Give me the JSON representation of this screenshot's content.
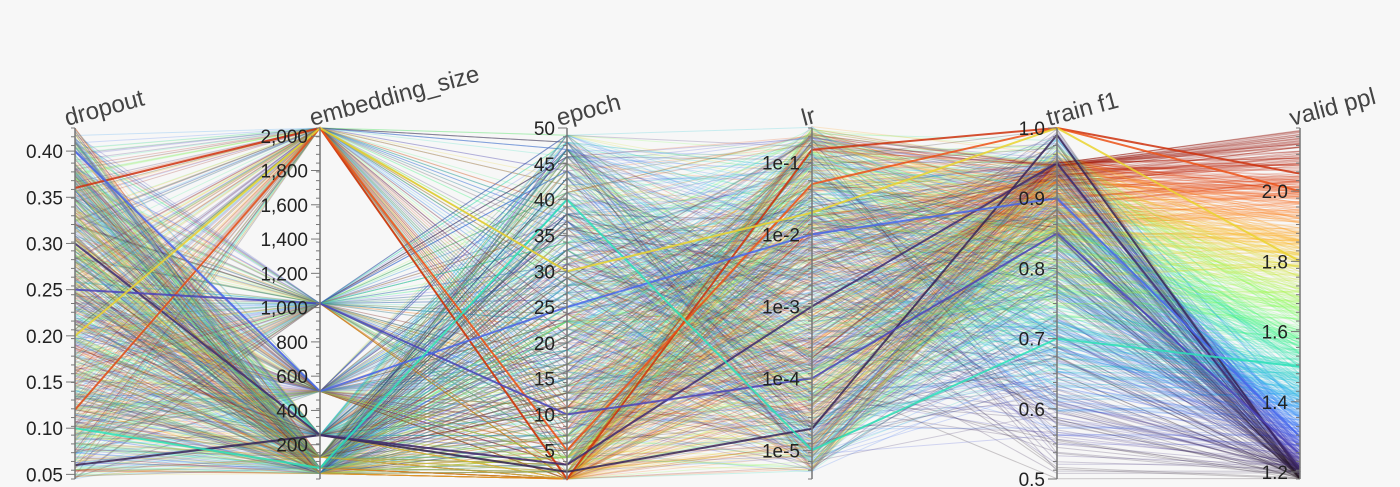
{
  "chart_data": {
    "type": "parallel_coordinates",
    "title": "",
    "axes": [
      {
        "name": "dropout",
        "scale": "linear",
        "range": [
          0.045,
          0.425
        ],
        "ticks": [
          0.05,
          0.1,
          0.15,
          0.2,
          0.25,
          0.3,
          0.35,
          0.4
        ],
        "tick_labels": [
          "0.05",
          "0.10",
          "0.15",
          "0.20",
          "0.25",
          "0.30",
          "0.35",
          "0.40"
        ]
      },
      {
        "name": "embedding_size",
        "scale": "linear",
        "range": [
          0,
          2048
        ],
        "ticks": [
          200,
          400,
          600,
          800,
          1000,
          1200,
          1400,
          1600,
          1800,
          2000
        ],
        "tick_labels": [
          "200",
          "400",
          "600",
          "800",
          "1,000",
          "1,200",
          "1,400",
          "1,600",
          "1,800",
          "2,000"
        ]
      },
      {
        "name": "epoch",
        "scale": "linear",
        "range": [
          1,
          50
        ],
        "ticks": [
          5,
          10,
          15,
          20,
          25,
          30,
          35,
          40,
          45,
          50
        ],
        "tick_labels": [
          "5",
          "10",
          "15",
          "20",
          "25",
          "30",
          "35",
          "40",
          "45",
          "50"
        ]
      },
      {
        "name": "lr",
        "scale": "log",
        "range": [
          4e-06,
          0.3
        ],
        "ticks": [
          1e-05,
          0.0001,
          0.001,
          0.01,
          0.1
        ],
        "tick_labels": [
          "1e-5",
          "1e-4",
          "1e-3",
          "1e-2",
          "1e-1"
        ]
      },
      {
        "name": "train f1",
        "scale": "linear",
        "range": [
          0.5,
          1.0
        ],
        "ticks": [
          0.5,
          0.6,
          0.7,
          0.8,
          0.9,
          1.0
        ],
        "tick_labels": [
          "0.5",
          "0.6",
          "0.7",
          "0.8",
          "0.9",
          "1.0"
        ]
      },
      {
        "name": "valid ppl",
        "scale": "linear",
        "range": [
          1.18,
          2.18
        ],
        "ticks": [
          1.2,
          1.4,
          1.6,
          1.8,
          2.0
        ],
        "tick_labels": [
          "1.2",
          "1.4",
          "1.6",
          "1.8",
          "2.0"
        ]
      }
    ],
    "color_by": "valid ppl",
    "colormap": "turbo",
    "colors": {
      "background": "#f7f7f7",
      "axis": "#777777",
      "low": "#30123b",
      "high": "#7a0403"
    },
    "series": [
      {
        "values": [
          0.36,
          2048,
          1,
          0.15,
          1.0,
          2.05
        ]
      },
      {
        "values": [
          0.06,
          256,
          2,
          2e-05,
          0.99,
          1.2
        ]
      },
      {
        "values": [
          0.3,
          256,
          3,
          0.001,
          0.95,
          1.21
        ]
      },
      {
        "values": [
          0.12,
          2048,
          5,
          0.05,
          1.0,
          2.0
        ]
      },
      {
        "values": [
          0.25,
          1024,
          10,
          0.0001,
          0.85,
          1.25
        ]
      },
      {
        "values": [
          0.4,
          512,
          25,
          0.01,
          0.9,
          1.3
        ]
      },
      {
        "values": [
          0.1,
          64,
          40,
          1e-05,
          0.7,
          1.5
        ]
      },
      {
        "values": [
          0.2,
          2048,
          30,
          0.02,
          1.0,
          1.8
        ]
      }
    ]
  }
}
